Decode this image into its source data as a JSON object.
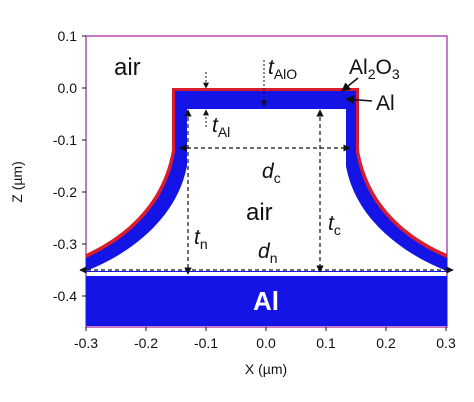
{
  "axes": {
    "y_label": "Z (µm)",
    "x_label": "X (µm)",
    "y_ticks": [
      "0.1",
      "0.0",
      "-0.1",
      "-0.2",
      "-0.3",
      "-0.4"
    ],
    "x_ticks": [
      "-0.3",
      "-0.2",
      "-0.1",
      "0.0",
      "0.1",
      "0.2",
      "0.3"
    ]
  },
  "labels": {
    "air_outer": "air",
    "air_inner": "air",
    "al2o3": "Al2O3",
    "al_top": "Al",
    "al_base": "Al",
    "t_alo": "t",
    "t_alo_sub": "AlO",
    "t_al": "t",
    "t_al_sub": "Al",
    "d_c": "d",
    "d_c_sub": "c",
    "d_n": "d",
    "d_n_sub": "n",
    "t_n": "t",
    "t_n_sub": "n",
    "t_c": "t",
    "t_c_sub": "c"
  },
  "colors": {
    "aluminum": "#1414e6",
    "oxide": "#d81e2e",
    "frame": "#b24fb2"
  }
}
